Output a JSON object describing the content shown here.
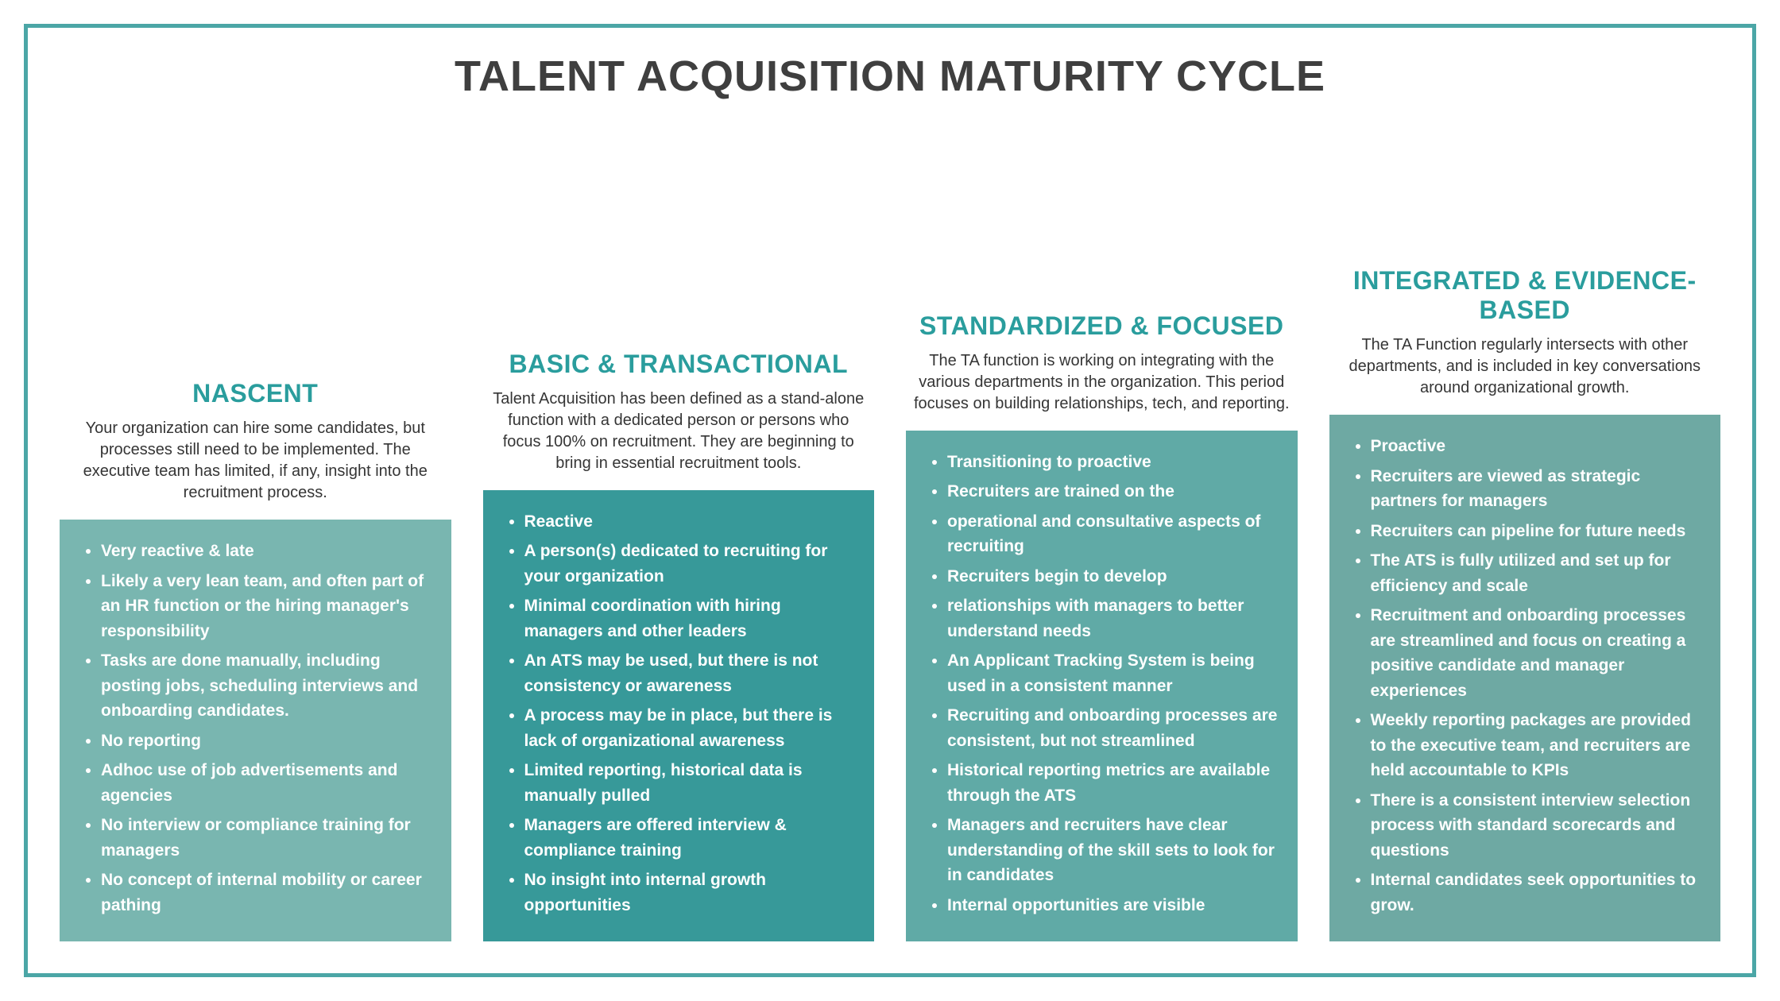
{
  "title": "TALENT ACQUISITION MATURITY CYCLE",
  "accent_color": "#2a9d9d",
  "border_color": "#4ba6a6",
  "title_color": "#3f3f3f",
  "desc_color": "#353535",
  "columns": [
    {
      "title": "NASCENT",
      "desc": "Your organization can hire some candidates, but processes still need to be implemented. The executive team has limited, if any, insight into the recruitment process.",
      "box_color": "#79b6b0",
      "bullets": [
        "Very reactive & late",
        "Likely a very lean team, and often part of an HR function or the hiring manager's responsibility",
        "Tasks are done manually, including posting jobs, scheduling interviews and onboarding candidates.",
        "No reporting",
        "Adhoc use of job advertisements and agencies",
        "No interview or compliance training for managers",
        "No concept of internal mobility or career pathing"
      ]
    },
    {
      "title": "BASIC & TRANSACTIONAL",
      "desc": "Talent Acquisition has been defined as a stand-alone function with a dedicated person or persons who focus 100% on recruitment. They are beginning to bring in essential recruitment tools.",
      "box_color": "#379999",
      "bullets": [
        "Reactive",
        "A person(s) dedicated to recruiting for your organization",
        "Minimal coordination with hiring managers and other leaders",
        "An ATS may be used, but there is not consistency or awareness",
        "A process may be in place, but there is lack of organizational awareness",
        "Limited reporting, historical data is manually pulled",
        "Managers are offered interview & compliance training",
        "No insight into internal growth opportunities"
      ]
    },
    {
      "title": "STANDARDIZED & FOCUSED",
      "desc": "The TA function is working on integrating with the various departments in the organization. This period focuses on building relationships, tech, and reporting.",
      "box_color": "#60aaa6",
      "bullets": [
        "Transitioning to proactive",
        "Recruiters are trained on the",
        "operational and consultative aspects of recruiting",
        "Recruiters begin to develop",
        "relationships with managers to better understand needs",
        "An Applicant Tracking System is being used in a consistent manner",
        "Recruiting and onboarding processes are consistent, but not streamlined",
        "Historical reporting metrics are available through the ATS",
        "Managers and recruiters have clear understanding of the skill sets to look for in candidates",
        "Internal opportunities are visible"
      ]
    },
    {
      "title": "INTEGRATED & EVIDENCE-BASED",
      "desc": "The TA Function regularly intersects with other departments, and is included in key conversations around organizational growth.",
      "box_color": "#6ea9a3",
      "bullets": [
        "Proactive",
        "Recruiters are viewed as strategic partners for managers",
        "Recruiters can pipeline for future needs",
        "The ATS is fully utilized and set up for efficiency and scale",
        "Recruitment and onboarding processes are streamlined and focus on creating a positive candidate and manager experiences",
        "Weekly reporting packages are provided to the executive team, and recruiters are held accountable to KPIs",
        "There is a consistent interview selection process with standard scorecards and questions",
        "Internal candidates seek opportunities to grow."
      ]
    }
  ]
}
